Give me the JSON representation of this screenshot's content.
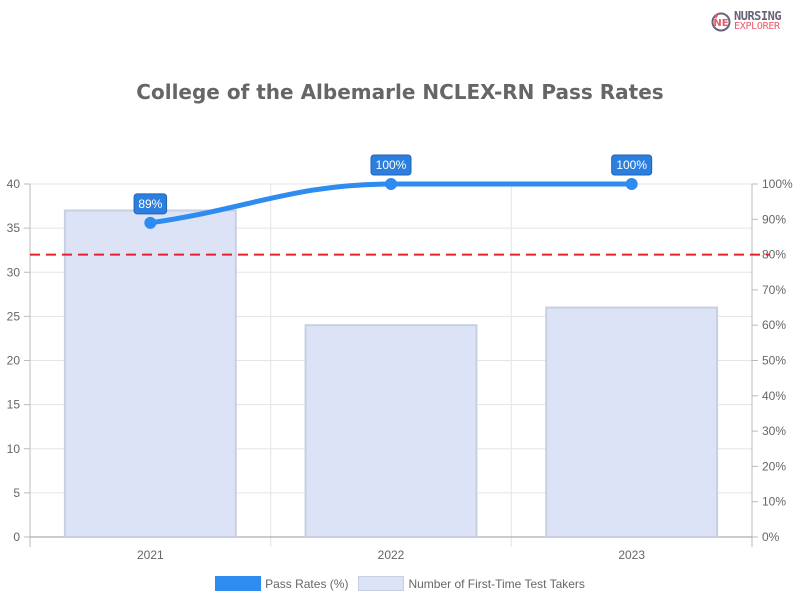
{
  "brand": {
    "line1": "NURSING",
    "line2": "EXPLORER"
  },
  "chart_data": {
    "type": "bar",
    "title": "College of the Albemarle NCLEX-RN Pass Rates",
    "categories": [
      "2021",
      "2022",
      "2023"
    ],
    "series": [
      {
        "name": "Pass Rates (%)",
        "type": "line",
        "axis": "right",
        "values": [
          89,
          100,
          100
        ],
        "labels": [
          "89%",
          "100%",
          "100%"
        ],
        "color": "#2e8bef"
      },
      {
        "name": "Number of First-Time Test Takers",
        "type": "bar",
        "axis": "left",
        "values": [
          37,
          24,
          26
        ],
        "color": "#dce3f7",
        "border": "#c8cfe3"
      }
    ],
    "benchmark": {
      "value": 80,
      "axis": "right",
      "color": "#e8202a",
      "style": "dashed"
    },
    "left_axis": {
      "ylim": [
        0,
        40
      ],
      "ticks": [
        "0",
        "5",
        "10",
        "15",
        "20",
        "25",
        "30",
        "35",
        "40"
      ]
    },
    "right_axis": {
      "ylim": [
        0,
        100
      ],
      "ticks": [
        "0%",
        "10%",
        "20%",
        "30%",
        "40%",
        "50%",
        "60%",
        "70%",
        "80%",
        "90%",
        "100%"
      ]
    },
    "xlabel": "",
    "ylabel": "",
    "grid": true,
    "legend_position": "bottom"
  },
  "legend": {
    "pass": "Pass Rates (%)",
    "takers": "Number of First-Time Test Takers"
  }
}
